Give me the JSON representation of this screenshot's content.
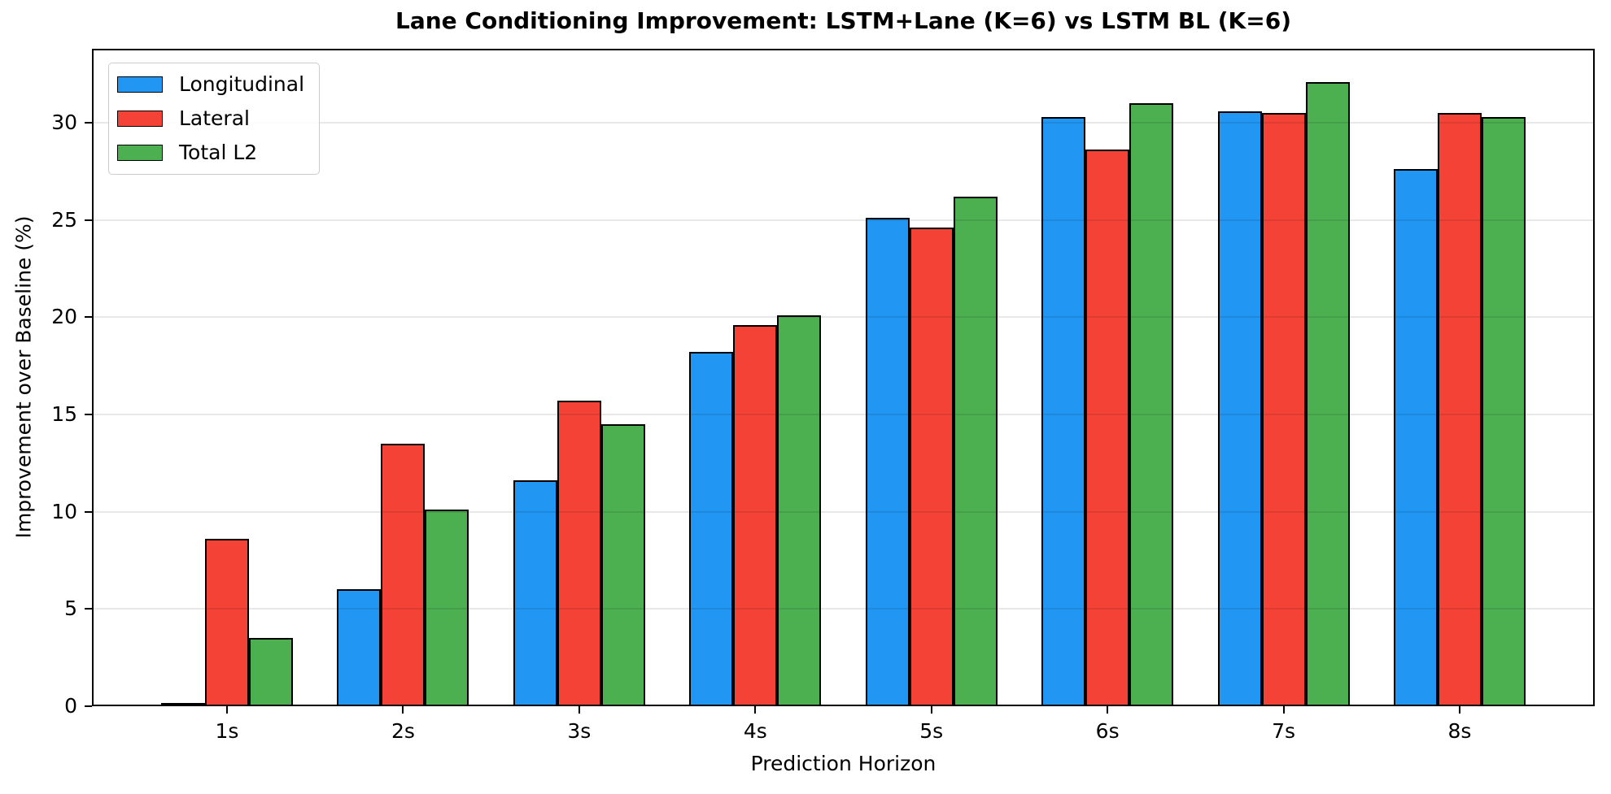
{
  "chart_data": {
    "type": "bar",
    "title": "Lane Conditioning Improvement: LSTM+Lane (K=6) vs LSTM BL (K=6)",
    "xlabel": "Prediction Horizon",
    "ylabel": "Improvement over Baseline (%)",
    "categories": [
      "1s",
      "2s",
      "3s",
      "4s",
      "5s",
      "6s",
      "7s",
      "8s"
    ],
    "series": [
      {
        "name": "Longitudinal",
        "color": "#2196F3",
        "values": [
          0.15,
          6.0,
          11.6,
          18.2,
          25.1,
          30.3,
          30.6,
          27.6
        ]
      },
      {
        "name": "Lateral",
        "color": "#F44336",
        "values": [
          8.6,
          13.5,
          15.7,
          19.6,
          24.6,
          28.6,
          30.5,
          30.5
        ]
      },
      {
        "name": "Total L2",
        "color": "#4CAF50",
        "values": [
          3.5,
          10.1,
          14.5,
          20.1,
          26.2,
          31.0,
          32.1,
          30.3
        ]
      }
    ],
    "yticks": [
      0,
      5,
      10,
      15,
      20,
      25,
      30
    ],
    "ylim": [
      0,
      33.8
    ],
    "grid": true,
    "grid_color": "#e8e8e8",
    "bar_edge_color": "#000000",
    "background_color": "#ffffff",
    "legend_position": "upper left"
  }
}
